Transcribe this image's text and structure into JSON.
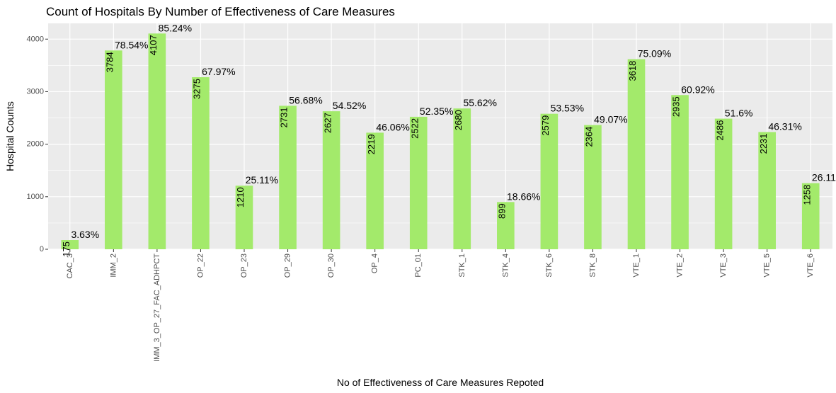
{
  "chart_data": {
    "type": "bar",
    "title": "Count of Hospitals By Number of Effectiveness of Care Measures",
    "xlabel": "No of Effectiveness of Care Measures Repoted",
    "ylabel": "Hospital Counts",
    "ylim": [
      0,
      4300
    ],
    "yticks": [
      0,
      1000,
      2000,
      3000,
      4000
    ],
    "grid": true,
    "bar_color": "#a3ea6b",
    "panel_color": "#ebebeb",
    "categories": [
      "CAC_3",
      "IMM_2",
      "IMM_3_OP_27_FAC_ADHPCT",
      "OP_22",
      "OP_23",
      "OP_29",
      "OP_30",
      "OP_4",
      "PC_01",
      "STK_1",
      "STK_4",
      "STK_6",
      "STK_8",
      "VTE_1",
      "VTE_2",
      "VTE_3",
      "VTE_5",
      "VTE_6"
    ],
    "values": [
      175,
      3784,
      4107,
      3275,
      1210,
      2731,
      2627,
      2219,
      2522,
      2680,
      899,
      2579,
      2364,
      3618,
      2935,
      2486,
      2231,
      1258
    ],
    "value_labels": [
      "175",
      "3784",
      "4107",
      "3275",
      "1210",
      "2731",
      "2627",
      "2219",
      "2522",
      "2680",
      "899",
      "2579",
      "2364",
      "3618",
      "2935",
      "2486",
      "2231",
      "1258"
    ],
    "percent_labels": [
      "3.63%",
      "78.54%",
      "85.24%",
      "67.97%",
      "25.11%",
      "56.68%",
      "54.52%",
      "46.06%",
      "52.35%",
      "55.62%",
      "18.66%",
      "53.53%",
      "49.07%",
      "75.09%",
      "60.92%",
      "51.6%",
      "46.31%",
      "26.11"
    ]
  }
}
